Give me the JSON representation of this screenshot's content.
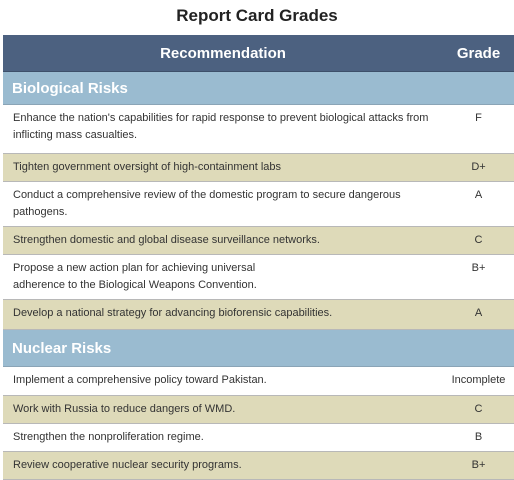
{
  "title": "Report Card Grades",
  "header": {
    "recommendation": "Recommendation",
    "grade": "Grade"
  },
  "sections": [
    {
      "name": "Biological Risks",
      "rows": [
        {
          "text": "Enhance the nation's capabilities for rapid response to prevent biological attacks from inflicting mass casualties.",
          "grade": "F"
        },
        {
          "text": "Tighten government oversight of high-containment labs",
          "grade": "D+"
        },
        {
          "text": "Conduct a comprehensive review of the domestic program to secure dangerous pathogens.",
          "grade": "A"
        },
        {
          "text": "Strengthen domestic and global disease surveillance networks.",
          "grade": "C"
        },
        {
          "text": "Propose a new action plan for achieving universal\nadherence to the Biological Weapons Convention.",
          "grade": "B+"
        },
        {
          "text": "Develop a national strategy for advancing bioforensic capabilities.",
          "grade": "A"
        }
      ]
    },
    {
      "name": "Nuclear Risks",
      "rows": [
        {
          "text": "Implement a comprehensive policy toward Pakistan.",
          "grade": "Incomplete"
        },
        {
          "text": "Work with Russia to reduce dangers of WMD.",
          "grade": "C"
        },
        {
          "text": "Strengthen the nonproliferation regime.",
          "grade": "B"
        },
        {
          "text": "Review cooperative nuclear security programs.",
          "grade": "B+"
        }
      ]
    }
  ]
}
